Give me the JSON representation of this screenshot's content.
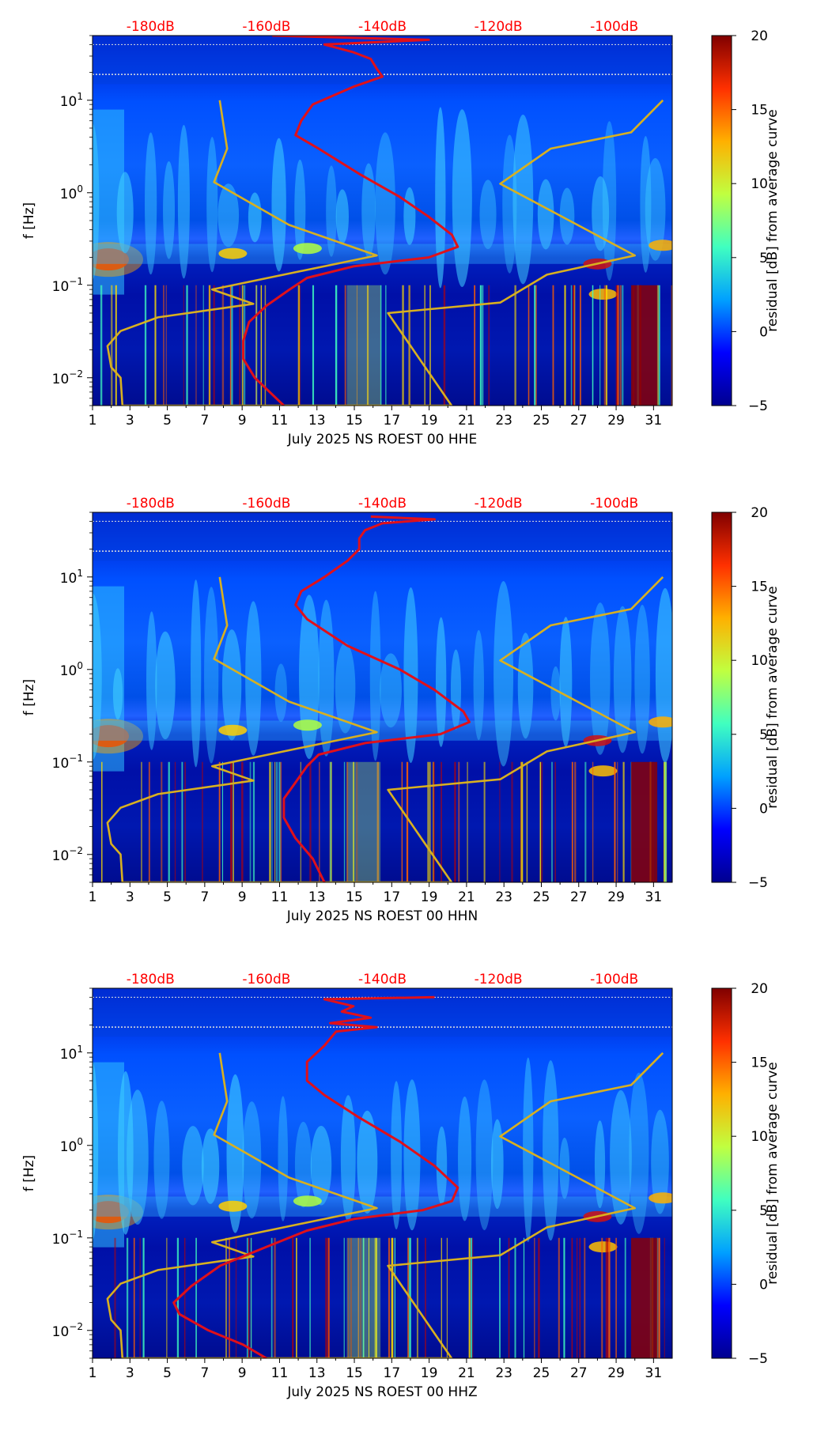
{
  "colors": {
    "noise_model": "#e0101a",
    "mean_curve": "#d8b020",
    "top_axis_label": "#ff0000",
    "cmap_stops": [
      "#00008f",
      "#0000ff",
      "#00a0ff",
      "#40ffc0",
      "#c0ff40",
      "#ffb000",
      "#ff3000",
      "#800000"
    ]
  },
  "chart_data": [
    {
      "type": "heatmap",
      "xlabel": "July 2025 NS ROEST 00 HHE",
      "ylabel": "f [Hz]",
      "xlim": [
        1,
        32
      ],
      "ylim": [
        0.005,
        50
      ],
      "xticks": [
        "1",
        "3",
        "5",
        "7",
        "9",
        "11",
        "13",
        "15",
        "17",
        "19",
        "21",
        "23",
        "25",
        "27",
        "29",
        "31"
      ],
      "yticks": [
        {
          "exp": "-2"
        },
        {
          "exp": "-1"
        },
        {
          "exp": "0"
        },
        {
          "exp": "1"
        }
      ],
      "top_axis": {
        "labels": [
          "-180dB",
          "-160dB",
          "-140dB",
          "-120dB",
          "-100dB"
        ],
        "range_db": [
          -190,
          -90
        ]
      },
      "colorbar": {
        "label": "residual [dB] from average curve",
        "range": [
          -5,
          20
        ],
        "ticks": [
          "20",
          "15",
          "10",
          "5",
          "0",
          "−5"
        ]
      },
      "noise_model_curve": {
        "name": "noise model (dB, top axis)",
        "points": [
          [
            -159,
            50
          ],
          [
            -132,
            45
          ],
          [
            -150,
            40
          ],
          [
            -145,
            33
          ],
          [
            -142,
            28
          ],
          [
            -141,
            22
          ],
          [
            -140,
            18
          ],
          [
            -145,
            14
          ],
          [
            -152,
            9
          ],
          [
            -154,
            6
          ],
          [
            -155,
            4.2
          ],
          [
            -151,
            3
          ],
          [
            -144,
            1.6
          ],
          [
            -137,
            0.9
          ],
          [
            -132,
            0.55
          ],
          [
            -128,
            0.35
          ],
          [
            -127,
            0.26
          ],
          [
            -132,
            0.2
          ],
          [
            -145,
            0.16
          ],
          [
            -153,
            0.12
          ],
          [
            -156,
            0.09
          ],
          [
            -160,
            0.06
          ],
          [
            -163,
            0.04
          ],
          [
            -164,
            0.025
          ],
          [
            -164,
            0.016
          ],
          [
            -162,
            0.01
          ],
          [
            -157,
            0.005
          ]
        ]
      },
      "mean_curve": {
        "name": "average curve",
        "points": [
          [
            7.8,
            10
          ],
          [
            8.2,
            3
          ],
          [
            7.5,
            1.3
          ],
          [
            11.5,
            0.45
          ],
          [
            16.2,
            0.21
          ],
          [
            7.4,
            0.09
          ],
          [
            9.6,
            0.063
          ],
          [
            4.5,
            0.045
          ],
          [
            2.5,
            0.032
          ],
          [
            1.8,
            0.022
          ],
          [
            2.0,
            0.013
          ],
          [
            2.5,
            0.01
          ],
          [
            2.6,
            0.005
          ],
          [
            20.2,
            0.005
          ],
          [
            16.8,
            0.05
          ],
          [
            22.8,
            0.065
          ],
          [
            25.3,
            0.13
          ],
          [
            30.0,
            0.21
          ],
          [
            22.8,
            1.25
          ],
          [
            25.5,
            3
          ],
          [
            29.8,
            4.5
          ],
          [
            31.5,
            10
          ]
        ]
      }
    },
    {
      "type": "heatmap",
      "xlabel": "July 2025 NS ROEST 00 HHN",
      "ylabel": "f [Hz]",
      "xlim": [
        1,
        32
      ],
      "ylim": [
        0.005,
        50
      ],
      "xticks": [
        "1",
        "3",
        "5",
        "7",
        "9",
        "11",
        "13",
        "15",
        "17",
        "19",
        "21",
        "23",
        "25",
        "27",
        "29",
        "31"
      ],
      "yticks": [
        {
          "exp": "-2"
        },
        {
          "exp": "-1"
        },
        {
          "exp": "0"
        },
        {
          "exp": "1"
        }
      ],
      "top_axis": {
        "labels": [
          "-180dB",
          "-160dB",
          "-140dB",
          "-120dB",
          "-100dB"
        ],
        "range_db": [
          -190,
          -90
        ]
      },
      "colorbar": {
        "label": "residual [dB] from average curve",
        "range": [
          -5,
          20
        ],
        "ticks": [
          "20",
          "15",
          "10",
          "5",
          "0",
          "−5"
        ]
      },
      "noise_model_curve": {
        "name": "noise model (dB, top axis)",
        "points": [
          [
            -142,
            45
          ],
          [
            -131,
            42
          ],
          [
            -140,
            38
          ],
          [
            -143,
            32
          ],
          [
            -144,
            26
          ],
          [
            -144,
            20
          ],
          [
            -146,
            15
          ],
          [
            -150,
            10
          ],
          [
            -154,
            7
          ],
          [
            -155,
            5
          ],
          [
            -153,
            3.5
          ],
          [
            -146,
            1.8
          ],
          [
            -137,
            1
          ],
          [
            -131,
            0.6
          ],
          [
            -126,
            0.35
          ],
          [
            -125,
            0.27
          ],
          [
            -130,
            0.2
          ],
          [
            -143,
            0.16
          ],
          [
            -151,
            0.12
          ],
          [
            -153,
            0.09
          ],
          [
            -155,
            0.06
          ],
          [
            -157,
            0.04
          ],
          [
            -157,
            0.025
          ],
          [
            -155,
            0.015
          ],
          [
            -152,
            0.009
          ],
          [
            -150,
            0.005
          ]
        ]
      },
      "mean_curve": {
        "name": "average curve",
        "points": [
          [
            7.8,
            10
          ],
          [
            8.2,
            3
          ],
          [
            7.5,
            1.3
          ],
          [
            11.5,
            0.45
          ],
          [
            16.2,
            0.21
          ],
          [
            7.4,
            0.09
          ],
          [
            9.6,
            0.063
          ],
          [
            4.5,
            0.045
          ],
          [
            2.5,
            0.032
          ],
          [
            1.8,
            0.022
          ],
          [
            2.0,
            0.013
          ],
          [
            2.5,
            0.01
          ],
          [
            2.6,
            0.005
          ],
          [
            20.2,
            0.005
          ],
          [
            16.8,
            0.05
          ],
          [
            22.8,
            0.065
          ],
          [
            25.3,
            0.13
          ],
          [
            30.0,
            0.21
          ],
          [
            22.8,
            1.25
          ],
          [
            25.5,
            3
          ],
          [
            29.8,
            4.5
          ],
          [
            31.5,
            10
          ]
        ]
      }
    },
    {
      "type": "heatmap",
      "xlabel": "July 2025 NS ROEST 00 HHZ",
      "ylabel": "f [Hz]",
      "xlim": [
        1,
        32
      ],
      "ylim": [
        0.005,
        50
      ],
      "xticks": [
        "1",
        "3",
        "5",
        "7",
        "9",
        "11",
        "13",
        "15",
        "17",
        "19",
        "21",
        "23",
        "25",
        "27",
        "29",
        "31"
      ],
      "yticks": [
        {
          "exp": "-2"
        },
        {
          "exp": "-1"
        },
        {
          "exp": "0"
        },
        {
          "exp": "1"
        }
      ],
      "top_axis": {
        "labels": [
          "-180dB",
          "-160dB",
          "-140dB",
          "-120dB",
          "-100dB"
        ],
        "range_db": [
          -190,
          -90
        ]
      },
      "colorbar": {
        "label": "residual [dB] from average curve",
        "range": [
          -5,
          20
        ],
        "ticks": [
          "20",
          "15",
          "10",
          "5",
          "0",
          "−5"
        ]
      },
      "noise_model_curve": {
        "name": "noise model (dB, top axis)",
        "points": [
          [
            -131,
            40
          ],
          [
            -150,
            38
          ],
          [
            -145,
            32
          ],
          [
            -147,
            28
          ],
          [
            -142,
            24
          ],
          [
            -149,
            21
          ],
          [
            -141,
            19
          ],
          [
            -148,
            17
          ],
          [
            -150,
            12
          ],
          [
            -153,
            8
          ],
          [
            -153,
            5
          ],
          [
            -150,
            3.5
          ],
          [
            -144,
            2
          ],
          [
            -137,
            1.1
          ],
          [
            -131,
            0.6
          ],
          [
            -127,
            0.35
          ],
          [
            -128,
            0.25
          ],
          [
            -133,
            0.2
          ],
          [
            -145,
            0.16
          ],
          [
            -153,
            0.12
          ],
          [
            -160,
            0.08
          ],
          [
            -168,
            0.05
          ],
          [
            -173,
            0.03
          ],
          [
            -176,
            0.02
          ],
          [
            -175,
            0.015
          ],
          [
            -170,
            0.01
          ],
          [
            -164,
            0.007
          ],
          [
            -160,
            0.005
          ]
        ]
      },
      "mean_curve": {
        "name": "average curve",
        "points": [
          [
            7.8,
            10
          ],
          [
            8.2,
            3
          ],
          [
            7.5,
            1.3
          ],
          [
            11.5,
            0.45
          ],
          [
            16.2,
            0.21
          ],
          [
            7.4,
            0.09
          ],
          [
            9.6,
            0.063
          ],
          [
            4.5,
            0.045
          ],
          [
            2.5,
            0.032
          ],
          [
            1.8,
            0.022
          ],
          [
            2.0,
            0.013
          ],
          [
            2.5,
            0.01
          ],
          [
            2.6,
            0.005
          ],
          [
            20.2,
            0.005
          ],
          [
            16.8,
            0.05
          ],
          [
            22.8,
            0.065
          ],
          [
            25.3,
            0.13
          ],
          [
            30.0,
            0.21
          ],
          [
            22.8,
            1.25
          ],
          [
            25.5,
            3
          ],
          [
            29.8,
            4.5
          ],
          [
            31.5,
            10
          ]
        ]
      }
    }
  ]
}
